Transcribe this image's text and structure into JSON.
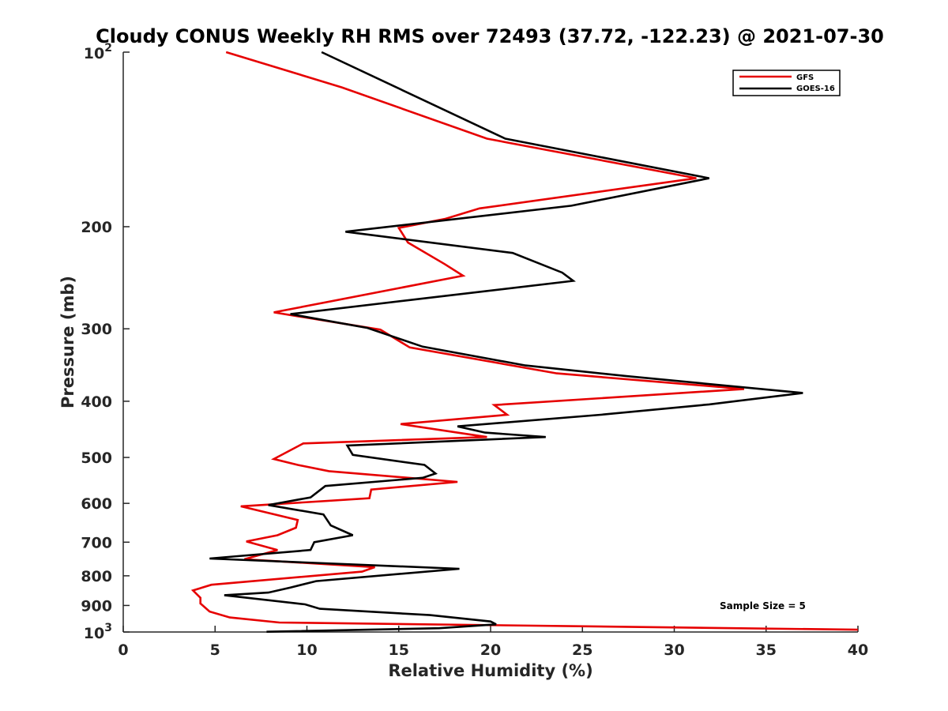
{
  "chart_data": {
    "type": "line",
    "title": "Cloudy CONUS Weekly RH RMS over 72493 (37.72, -122.23) @ 2021-07-30",
    "xlabel": "Relative Humidity (%)",
    "ylabel": "Pressure (mb)",
    "xlim": [
      0,
      40
    ],
    "ylim": [
      100,
      1000
    ],
    "yscale": "log",
    "y_reversed": true,
    "grid": false,
    "legend_position": "top-right",
    "x_ticks": [
      "0",
      "5",
      "10",
      "15",
      "20",
      "25",
      "30",
      "35",
      "40"
    ],
    "y_ticks": [
      {
        "value": 100,
        "base": "10",
        "exp": "2"
      },
      {
        "value": 200,
        "label": "200"
      },
      {
        "value": 300,
        "label": "300"
      },
      {
        "value": 400,
        "label": "400"
      },
      {
        "value": 500,
        "label": "500"
      },
      {
        "value": 600,
        "label": "600"
      },
      {
        "value": 700,
        "label": "700"
      },
      {
        "value": 800,
        "label": "800"
      },
      {
        "value": 900,
        "label": "900"
      },
      {
        "value": 1000,
        "base": "10",
        "exp": "3"
      }
    ],
    "annotation": "Sample Size = 5",
    "series": [
      {
        "name": "GFS",
        "color": "#e60000",
        "points": [
          [
            5.6,
            100
          ],
          [
            11.9,
            115
          ],
          [
            19.8,
            141
          ],
          [
            31.2,
            165
          ],
          [
            19.4,
            186
          ],
          [
            17.5,
            194
          ],
          [
            15.0,
            201
          ],
          [
            15.5,
            213
          ],
          [
            17.5,
            232
          ],
          [
            18.5,
            243
          ],
          [
            8.2,
            281
          ],
          [
            14.0,
            301
          ],
          [
            15.6,
            323
          ],
          [
            23.6,
            358
          ],
          [
            33.8,
            381
          ],
          [
            20.2,
            406
          ],
          [
            20.9,
            422
          ],
          [
            15.1,
            438
          ],
          [
            19.8,
            461
          ],
          [
            9.8,
            473
          ],
          [
            8.2,
            503
          ],
          [
            9.5,
            515
          ],
          [
            11.2,
            528
          ],
          [
            18.2,
            551
          ],
          [
            13.5,
            568
          ],
          [
            13.4,
            588
          ],
          [
            6.4,
            607
          ],
          [
            9.5,
            641
          ],
          [
            9.4,
            661
          ],
          [
            8.4,
            681
          ],
          [
            6.7,
            698
          ],
          [
            8.4,
            722
          ],
          [
            6.6,
            749
          ],
          [
            13.7,
            773
          ],
          [
            13.0,
            787
          ],
          [
            4.8,
            829
          ],
          [
            3.8,
            848
          ],
          [
            4.2,
            873
          ],
          [
            4.2,
            893
          ],
          [
            4.7,
            922
          ],
          [
            5.8,
            944
          ],
          [
            8.5,
            963
          ],
          [
            40.0,
            991
          ]
        ]
      },
      {
        "name": "GOES-16",
        "color": "#000000",
        "points": [
          [
            10.8,
            100
          ],
          [
            20.8,
            141
          ],
          [
            31.9,
            165
          ],
          [
            24.4,
            184
          ],
          [
            12.1,
            204
          ],
          [
            21.2,
            222
          ],
          [
            23.9,
            240
          ],
          [
            24.5,
            248
          ],
          [
            9.1,
            283
          ],
          [
            13.3,
            299
          ],
          [
            16.3,
            322
          ],
          [
            21.9,
            347
          ],
          [
            27.4,
            362
          ],
          [
            37.0,
            387
          ],
          [
            31.9,
            405
          ],
          [
            26.0,
            422
          ],
          [
            18.2,
            442
          ],
          [
            19.7,
            453
          ],
          [
            23.0,
            461
          ],
          [
            12.2,
            477
          ],
          [
            12.5,
            495
          ],
          [
            16.4,
            515
          ],
          [
            17.0,
            533
          ],
          [
            16.3,
            542
          ],
          [
            11.0,
            560
          ],
          [
            10.2,
            586
          ],
          [
            7.9,
            604
          ],
          [
            10.9,
            627
          ],
          [
            11.3,
            655
          ],
          [
            12.5,
            681
          ],
          [
            10.4,
            700
          ],
          [
            10.2,
            722
          ],
          [
            4.7,
            747
          ],
          [
            18.3,
            778
          ],
          [
            10.5,
            817
          ],
          [
            9.1,
            838
          ],
          [
            7.9,
            855
          ],
          [
            5.5,
            864
          ],
          [
            9.9,
            896
          ],
          [
            10.7,
            912
          ],
          [
            16.7,
            935
          ],
          [
            20.0,
            959
          ],
          [
            20.3,
            970
          ],
          [
            17.2,
            985
          ],
          [
            7.8,
            999
          ]
        ]
      }
    ]
  }
}
